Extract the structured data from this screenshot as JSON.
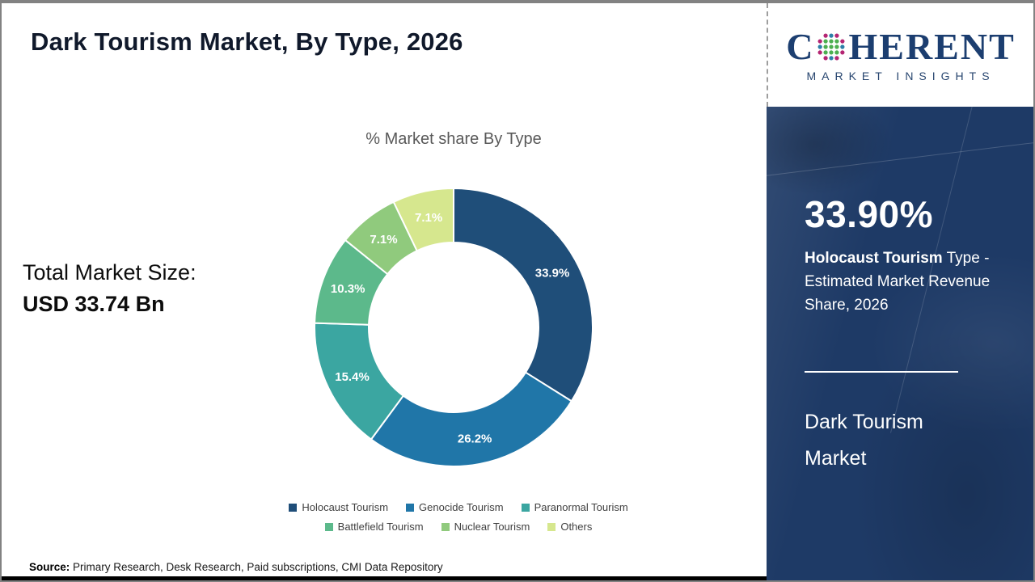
{
  "header": {
    "title": "Dark Tourism Market, By Type, 2026"
  },
  "logo": {
    "brand_prefix": "C",
    "brand_suffix": "HERENT",
    "tagline": "MARKET INSIGHTS",
    "brand_color": "#1C3E70"
  },
  "market_size": {
    "label": "Total Market Size:",
    "value": "USD 33.74 Bn"
  },
  "chart_data": {
    "type": "pie",
    "subtype": "donut",
    "title": "% Market share By Type",
    "unit": "%",
    "start_angle_deg": 0,
    "direction": "clockwise",
    "legend_position": "bottom",
    "inner_radius_ratio": 0.61,
    "segments": [
      {
        "label": "Holocaust Tourism",
        "value": 33.9,
        "display": "33.9%",
        "color": "#1F4E79"
      },
      {
        "label": "Genocide Tourism",
        "value": 26.2,
        "display": "26.2%",
        "color": "#2076A8"
      },
      {
        "label": "Paranormal Tourism",
        "value": 15.4,
        "display": "15.4%",
        "color": "#3BA6A1"
      },
      {
        "label": "Battlefield Tourism",
        "value": 10.3,
        "display": "10.3%",
        "color": "#5CB98B"
      },
      {
        "label": "Nuclear Tourism",
        "value": 7.1,
        "display": "7.1%",
        "color": "#90CA7D"
      },
      {
        "label": "Others",
        "value": 7.1,
        "display": "7.1%",
        "color": "#D6E78E"
      }
    ]
  },
  "sidebar": {
    "bg_color": "#1E3A66",
    "headline_value": "33.90%",
    "description_bold": "Holocaust Tourism",
    "description_rest": " Type - Estimated Market Revenue Share, 2026",
    "footer_title": "Dark Tourism Market"
  },
  "source": {
    "label": "Source:",
    "text": " Primary Research, Desk Research, Paid subscriptions, CMI Data Repository"
  }
}
